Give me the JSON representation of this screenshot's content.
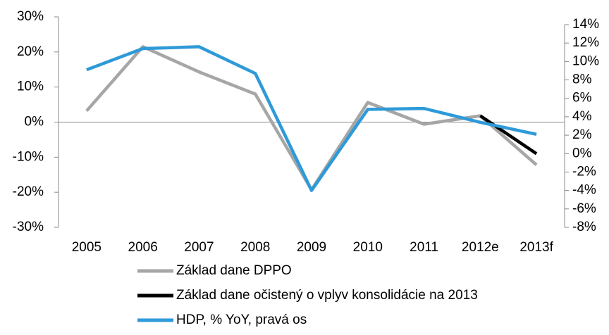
{
  "chart_data": {
    "type": "line",
    "categories": [
      "2005",
      "2006",
      "2007",
      "2008",
      "2009",
      "2010",
      "2011",
      "2012e",
      "2013f"
    ],
    "series": [
      {
        "name": "Základ dane DPPO",
        "color": "#a6a6a6",
        "values": [
          3.2,
          21.5,
          14.3,
          8.0,
          -19.3,
          5.6,
          -0.6,
          1.8,
          -12.2
        ]
      },
      {
        "name": "Základ dane očistený o vplyv konsolidácie na 2013",
        "color": "#000000",
        "values": [
          null,
          null,
          null,
          null,
          null,
          null,
          null,
          1.8,
          -9.0
        ]
      },
      {
        "name": "HDP, % YoY, pravá os",
        "color": "#2e9ad8",
        "axis": "y2",
        "values": [
          9.1,
          11.4,
          11.6,
          8.7,
          -4.0,
          4.8,
          4.9,
          3.4,
          2.1
        ]
      }
    ],
    "ylim": [
      -30,
      30
    ],
    "yticks": [
      {
        "value": -30,
        "label": "-30%"
      },
      {
        "value": -20,
        "label": "-20%"
      },
      {
        "value": -10,
        "label": "-10%"
      },
      {
        "value": 0,
        "label": "0%"
      },
      {
        "value": 10,
        "label": "10%"
      },
      {
        "value": 20,
        "label": "20%"
      },
      {
        "value": 30,
        "label": "30%"
      }
    ],
    "y2lim": [
      -8,
      14
    ],
    "y2ticks": [
      {
        "value": -8,
        "label": "-8%"
      },
      {
        "value": -6,
        "label": "-6%"
      },
      {
        "value": -4,
        "label": "-4%"
      },
      {
        "value": -2,
        "label": "-2%"
      },
      {
        "value": 0,
        "label": "0%"
      },
      {
        "value": 2,
        "label": "2%"
      },
      {
        "value": 4,
        "label": "4%"
      },
      {
        "value": 6,
        "label": "6%"
      },
      {
        "value": 8,
        "label": "8%"
      },
      {
        "value": 10,
        "label": "10%"
      },
      {
        "value": 12,
        "label": "12%"
      },
      {
        "value": 14,
        "label": "14%"
      }
    ],
    "legend": "bottom"
  }
}
